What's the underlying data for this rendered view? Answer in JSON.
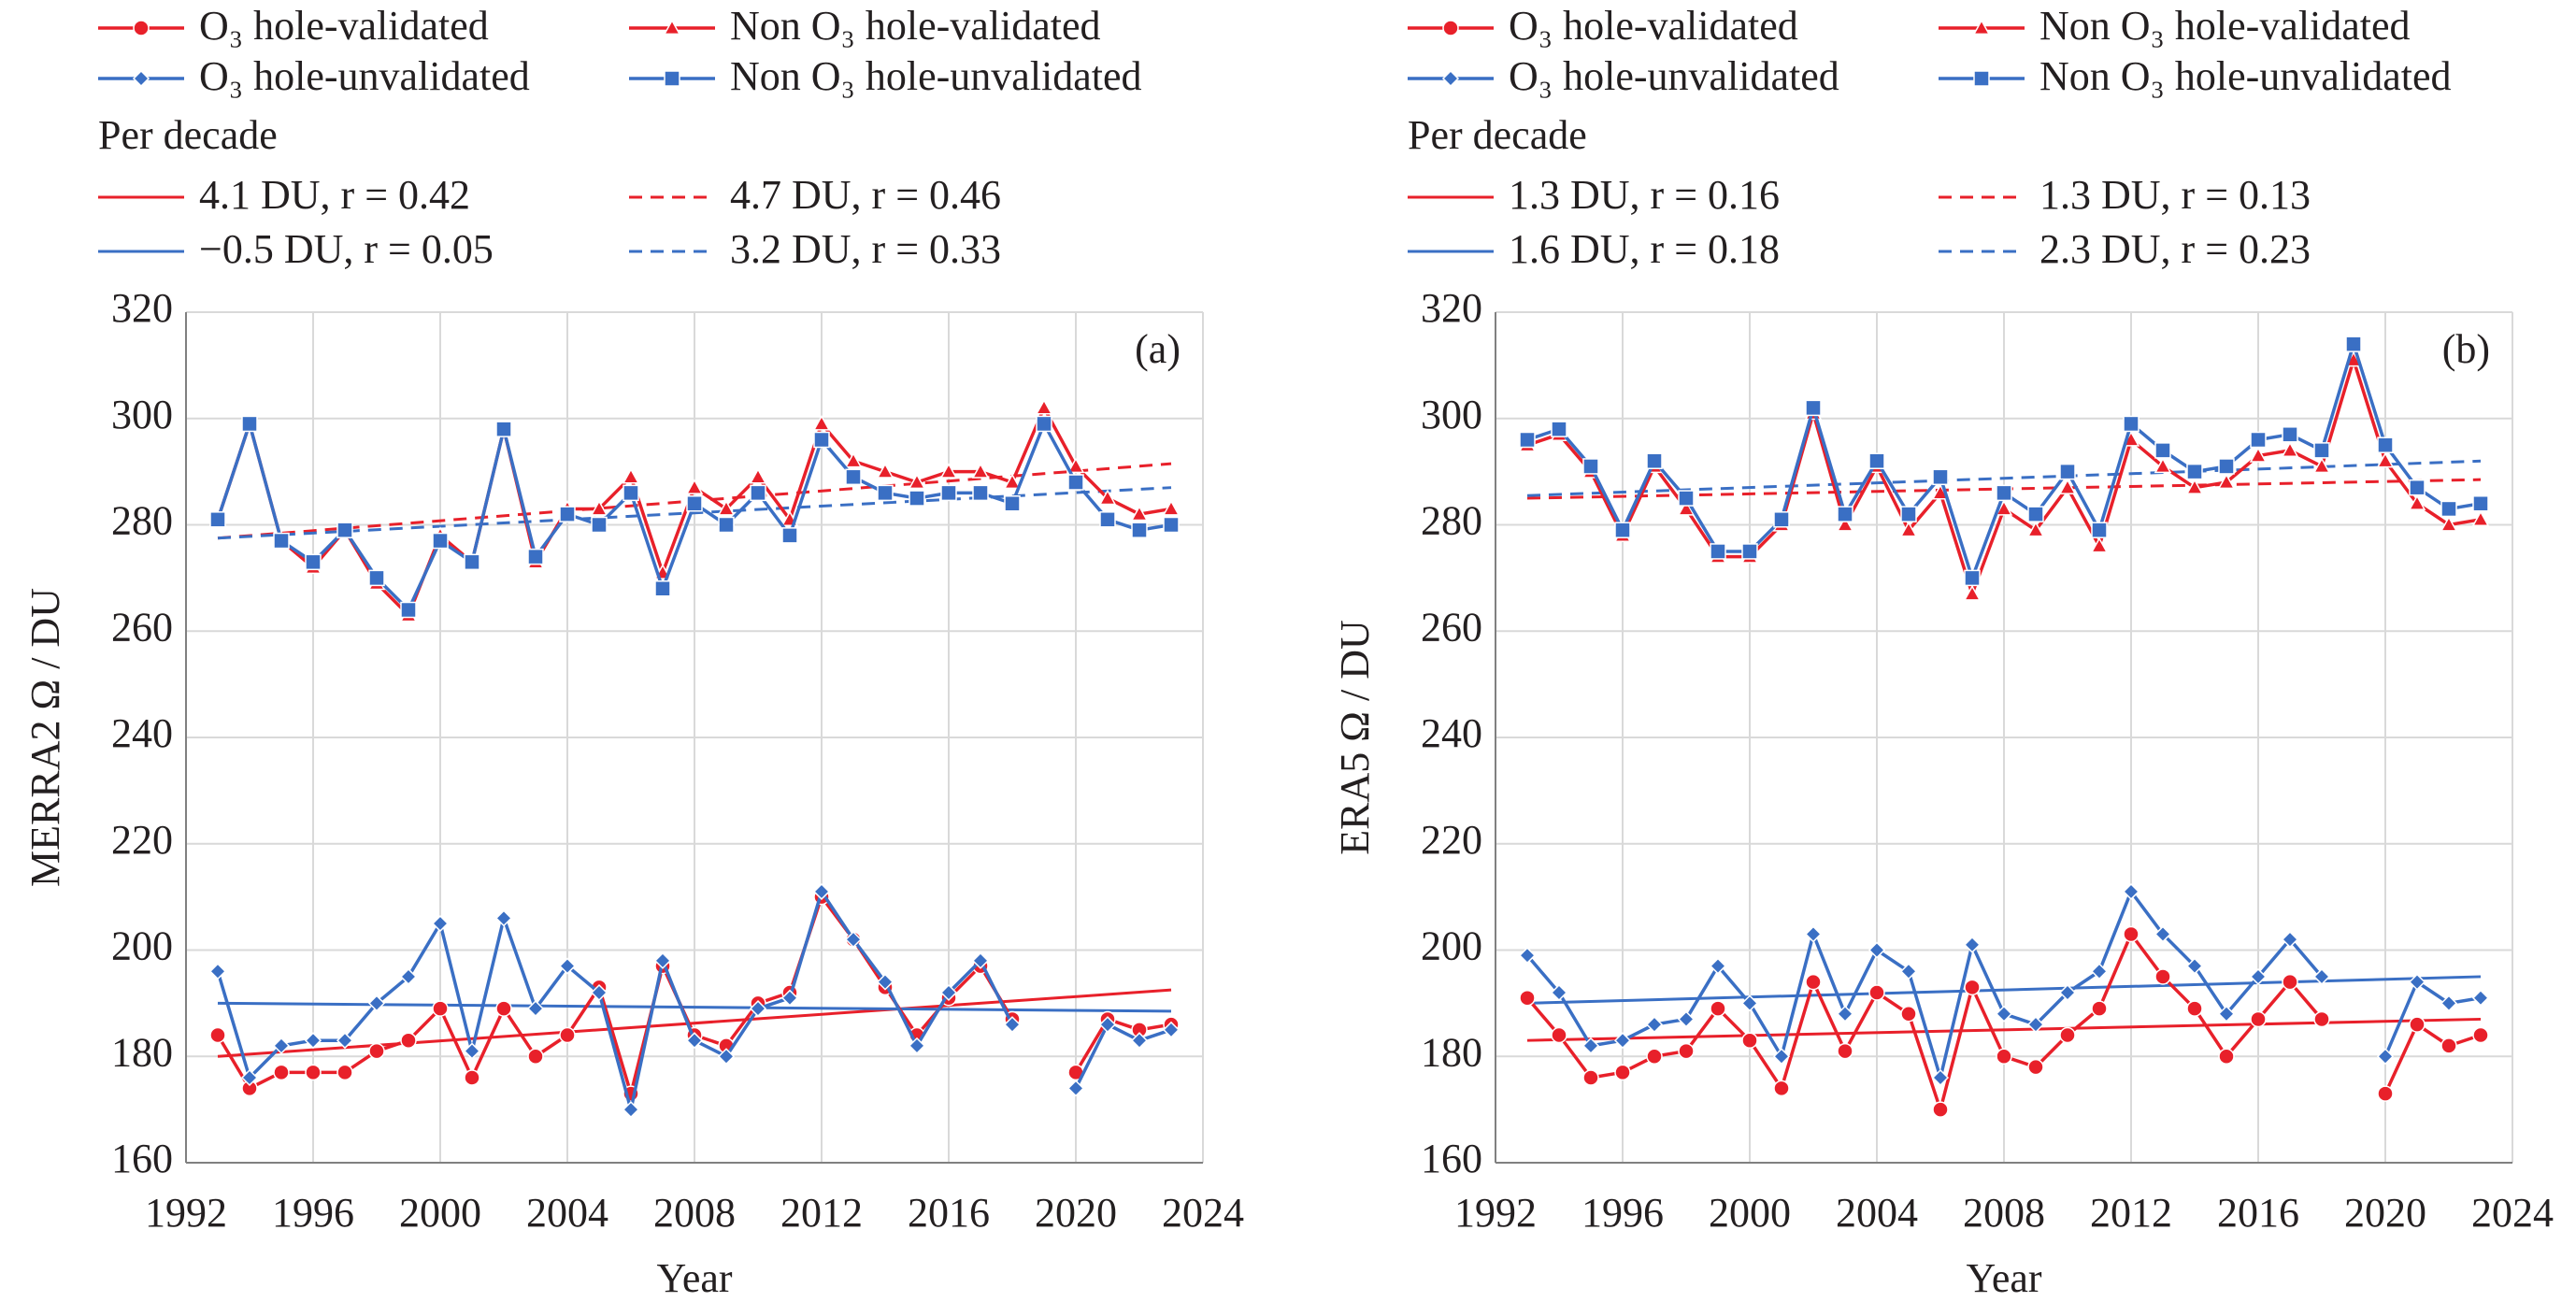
{
  "chart_data": [
    {
      "type": "line",
      "ylabel": "MERRA2 Ω / DU",
      "xlabel": "Year",
      "annotation": "(a)",
      "legend_subtitle": "Per decade",
      "xlim": [
        1992,
        2024
      ],
      "xticks": [
        1992,
        1996,
        2000,
        2004,
        2008,
        2012,
        2016,
        2020,
        2024
      ],
      "ylim": [
        160,
        320
      ],
      "yticks": [
        160,
        180,
        200,
        220,
        240,
        260,
        280,
        300,
        320
      ],
      "grid": true,
      "x": [
        1993,
        1994,
        1995,
        1996,
        1997,
        1998,
        1999,
        2000,
        2001,
        2002,
        2003,
        2004,
        2005,
        2006,
        2007,
        2008,
        2009,
        2010,
        2011,
        2012,
        2013,
        2014,
        2015,
        2016,
        2017,
        2018,
        2019,
        2020,
        2021,
        2022,
        2023
      ],
      "series": [
        {
          "name": "O₃ hole-validated",
          "color": "#e8202a",
          "marker": "circle",
          "values": [
            184,
            174,
            177,
            177,
            177,
            181,
            183,
            189,
            176,
            189,
            180,
            184,
            193,
            173,
            197,
            184,
            182,
            190,
            192,
            210,
            202,
            193,
            184,
            191,
            197,
            187,
            null,
            177,
            187,
            185,
            186
          ]
        },
        {
          "name": "Non O₃ hole-validated",
          "color": "#e8202a",
          "marker": "triangle",
          "values": [
            281,
            299,
            277,
            272,
            279,
            269,
            263,
            278,
            273,
            298,
            273,
            283,
            283,
            289,
            271,
            287,
            283,
            289,
            281,
            299,
            292,
            290,
            288,
            290,
            290,
            288,
            302,
            291,
            285,
            282,
            283
          ]
        },
        {
          "name": "O₃ hole-unvalidated",
          "color": "#3a6fc4",
          "marker": "diamond",
          "values": [
            196,
            176,
            182,
            183,
            183,
            190,
            195,
            205,
            181,
            206,
            189,
            197,
            192,
            170,
            198,
            183,
            180,
            189,
            191,
            211,
            202,
            194,
            182,
            192,
            198,
            186,
            null,
            174,
            186,
            183,
            185
          ]
        },
        {
          "name": "Non O₃ hole-unvalidated",
          "color": "#3a6fc4",
          "marker": "square",
          "values": [
            281,
            299,
            277,
            273,
            279,
            270,
            264,
            277,
            273,
            298,
            274,
            282,
            280,
            286,
            268,
            284,
            280,
            286,
            278,
            296,
            289,
            286,
            285,
            286,
            286,
            284,
            299,
            288,
            281,
            279,
            280
          ]
        }
      ],
      "trend_lines": [
        {
          "name": "4.1 DU, r = 0.42",
          "color": "#e8202a",
          "dashed": false,
          "x": [
            1993,
            2023
          ],
          "values": [
            180,
            192.5
          ]
        },
        {
          "name": "4.7 DU, r = 0.46",
          "color": "#e8202a",
          "dashed": true,
          "x": [
            1993,
            2023
          ],
          "values": [
            277.5,
            291.5
          ]
        },
        {
          "name": "−0.5 DU, r = 0.05",
          "color": "#3a6fc4",
          "dashed": false,
          "x": [
            1993,
            2023
          ],
          "values": [
            190,
            188.5
          ]
        },
        {
          "name": "3.2 DU, r = 0.33",
          "color": "#3a6fc4",
          "dashed": true,
          "x": [
            1993,
            2023
          ],
          "values": [
            277.5,
            287
          ]
        }
      ]
    },
    {
      "type": "line",
      "ylabel": "ERA5 Ω / DU",
      "xlabel": "Year",
      "annotation": "(b)",
      "legend_subtitle": "Per decade",
      "xlim": [
        1992,
        2024
      ],
      "xticks": [
        1992,
        1996,
        2000,
        2004,
        2008,
        2012,
        2016,
        2020,
        2024
      ],
      "ylim": [
        160,
        320
      ],
      "yticks": [
        160,
        180,
        200,
        220,
        240,
        260,
        280,
        300,
        320
      ],
      "grid": true,
      "x": [
        1993,
        1994,
        1995,
        1996,
        1997,
        1998,
        1999,
        2000,
        2001,
        2002,
        2003,
        2004,
        2005,
        2006,
        2007,
        2008,
        2009,
        2010,
        2011,
        2012,
        2013,
        2014,
        2015,
        2016,
        2017,
        2018,
        2019,
        2020,
        2021,
        2022,
        2023
      ],
      "series": [
        {
          "name": "O₃ hole-validated",
          "color": "#e8202a",
          "marker": "circle",
          "values": [
            191,
            184,
            176,
            177,
            180,
            181,
            189,
            183,
            174,
            194,
            181,
            192,
            188,
            170,
            193,
            180,
            178,
            184,
            189,
            203,
            195,
            189,
            180,
            187,
            194,
            187,
            null,
            173,
            186,
            182,
            184
          ]
        },
        {
          "name": "Non O₃ hole-validated",
          "color": "#e8202a",
          "marker": "triangle",
          "values": [
            295,
            297,
            290,
            278,
            291,
            283,
            274,
            274,
            280,
            301,
            280,
            291,
            279,
            286,
            267,
            283,
            279,
            287,
            276,
            296,
            291,
            287,
            288,
            293,
            294,
            291,
            311,
            292,
            284,
            280,
            281
          ]
        },
        {
          "name": "O₃ hole-unvalidated",
          "color": "#3a6fc4",
          "marker": "diamond",
          "values": [
            199,
            192,
            182,
            183,
            186,
            187,
            197,
            190,
            180,
            203,
            188,
            200,
            196,
            176,
            201,
            188,
            186,
            192,
            196,
            211,
            203,
            197,
            188,
            195,
            202,
            195,
            null,
            180,
            194,
            190,
            191
          ]
        },
        {
          "name": "Non O₃ hole-unvalidated",
          "color": "#3a6fc4",
          "marker": "square",
          "values": [
            296,
            298,
            291,
            279,
            292,
            285,
            275,
            275,
            281,
            302,
            282,
            292,
            282,
            289,
            270,
            286,
            282,
            290,
            279,
            299,
            294,
            290,
            291,
            296,
            297,
            294,
            314,
            295,
            287,
            283,
            284
          ]
        }
      ],
      "trend_lines": [
        {
          "name": "1.3 DU, r = 0.16",
          "color": "#e8202a",
          "dashed": false,
          "x": [
            1993,
            2023
          ],
          "values": [
            183,
            187
          ]
        },
        {
          "name": "1.3 DU, r = 0.13",
          "color": "#e8202a",
          "dashed": true,
          "x": [
            1993,
            2023
          ],
          "values": [
            285,
            288.5
          ]
        },
        {
          "name": "1.6 DU, r = 0.18",
          "color": "#3a6fc4",
          "dashed": false,
          "x": [
            1993,
            2023
          ],
          "values": [
            190,
            195
          ]
        },
        {
          "name": "2.3 DU, r = 0.23",
          "color": "#3a6fc4",
          "dashed": true,
          "x": [
            1993,
            2023
          ],
          "values": [
            285.5,
            292
          ]
        }
      ]
    }
  ]
}
